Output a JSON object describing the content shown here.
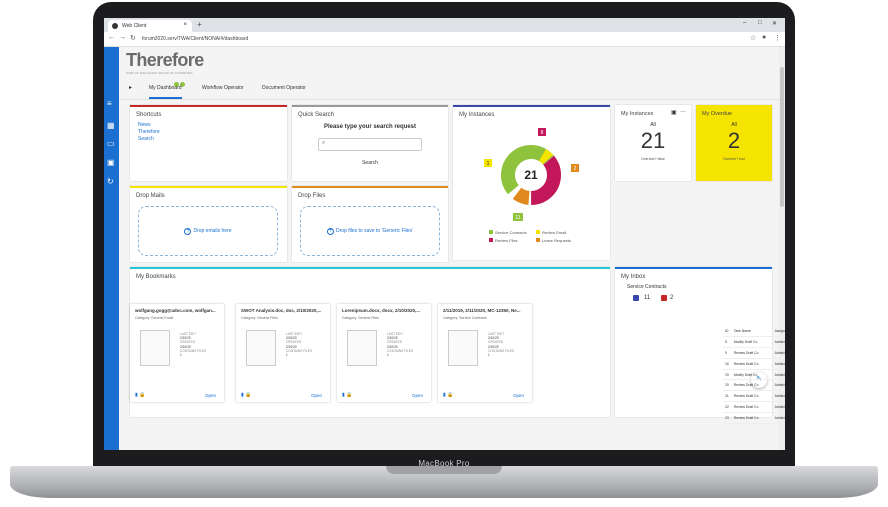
{
  "device": {
    "label": "MacBook Pro"
  },
  "browser": {
    "tab_title": "Web Client",
    "url": "forum2020.serv/TWA/Client/NONA/#/dashboard",
    "new_tab": "+",
    "close": "×",
    "back": "←",
    "forward": "→",
    "reload": "↻",
    "star": "☆",
    "account": "●",
    "menu": "⋮",
    "minimize": "–",
    "maximize": "□",
    "win_close": "✕"
  },
  "app": {
    "logo": "Therefore",
    "tagline": "PART OF THE CANON GROUP OF COMPANIES"
  },
  "sidebar_icons": [
    "menu-icon",
    "dashboard-icon",
    "folder-icon",
    "save-icon",
    "refresh-icon"
  ],
  "tabs": {
    "expand": "▸",
    "items": [
      "My Dashboard",
      "Workflow Operator",
      "Document Operator"
    ],
    "active": 0
  },
  "shortcuts": {
    "title": "Shortcuts",
    "items": [
      "News",
      "Therefore",
      "Search"
    ]
  },
  "quick_search": {
    "title": "Quick Search",
    "heading": "Please type your search request",
    "placeholder": "",
    "button": "Search"
  },
  "my_instances": {
    "title": "My Instances",
    "total": "21",
    "labels": [
      "8",
      "1",
      "2",
      "11"
    ],
    "legend": [
      "Service Contracts",
      "Review Email",
      "Review Files",
      "Leave Requests"
    ]
  },
  "instances_card": {
    "title": "My Instances",
    "scope": "All",
    "count": "21",
    "caption": "Overdue? false"
  },
  "overdue_card": {
    "title": "My Overdue",
    "scope": "All",
    "count": "2",
    "caption": "Overdue? true"
  },
  "drop_mails": {
    "title": "Drop Mails",
    "label": "Drop emails here"
  },
  "drop_files": {
    "title": "Drop Files",
    "label": "Drop files to save to 'Generic Files'"
  },
  "bookmarks": {
    "title": "My Bookmarks",
    "items": [
      {
        "title": "wolfgang.gogg@adoc.com, wolfgan...",
        "category": "Category: Generic Email",
        "last_edit": "2/10/20",
        "created": "2/10/20",
        "files": "1"
      },
      {
        "title": "SWOT Analysis.doc, doc, 2/10/2020,...",
        "category": "Category: Generic Files",
        "last_edit": "2/10/20",
        "created": "2/10/20",
        "files": "1"
      },
      {
        "title": "Lorenipsum.docx, docx, 2/10/2020,...",
        "category": "Category: Generic Files",
        "last_edit": "2/10/20",
        "created": "2/10/20",
        "files": "1"
      },
      {
        "title": "2/11/2019, 2/11/2020, MC-12350, Ne...",
        "category": "Category: Service Contracts",
        "last_edit": "2/10/20",
        "created": "2/10/20",
        "files": "1"
      }
    ],
    "last_edit_label": "LAST EDIT",
    "created_label": "CREATED",
    "files_label": "CONTAINS FILES",
    "open": "Open"
  },
  "inbox": {
    "title": "My Inbox",
    "workflow": "Service Contracts",
    "badge_a": "11",
    "badge_b": "2",
    "columns": [
      "ID",
      "Task Name",
      "Assigned To",
      "Info"
    ],
    "rows": [
      [
        "5",
        "Modify Draft Co",
        "Administrator",
        "MC-12347/2019-02-11/2021-02-11/Ne"
      ],
      [
        "9",
        "Review Draft Co",
        "Administrator",
        "MC-12346/2020-02-11/2021-02-11/Ne"
      ],
      [
        "16",
        "Review Draft Co",
        "Administrator",
        "MC-12348/2019-02-11/2021-02-11/Ne"
      ],
      [
        "19",
        "Modify Draft Co",
        "Administrator",
        "MC-12349/2019-02-11/2021-02-11/Ne"
      ],
      [
        "20",
        "Review Draft Co",
        "Administrator, F",
        "MC-12350/2019-02-11/2020-02-11/Ne"
      ],
      [
        "21",
        "Review Draft Co",
        "Administrator, F",
        "MC-12351/2019-02-11/2020-02-11/Ne"
      ],
      [
        "22",
        "Review Draft Co",
        "Administrator, F",
        "MC-12352/2019-02-11/2020-02-11/Ne"
      ],
      [
        "23",
        "Review Draft Co",
        "Administrator, F",
        "MC-12353/2019-02-11/2020-02-11/Ne"
      ]
    ]
  },
  "colors": {
    "accent": "#1a6fd1",
    "green": "#8fc33d",
    "red": "#c2185b",
    "orange": "#e08a1e",
    "yellow": "#f5e400"
  }
}
